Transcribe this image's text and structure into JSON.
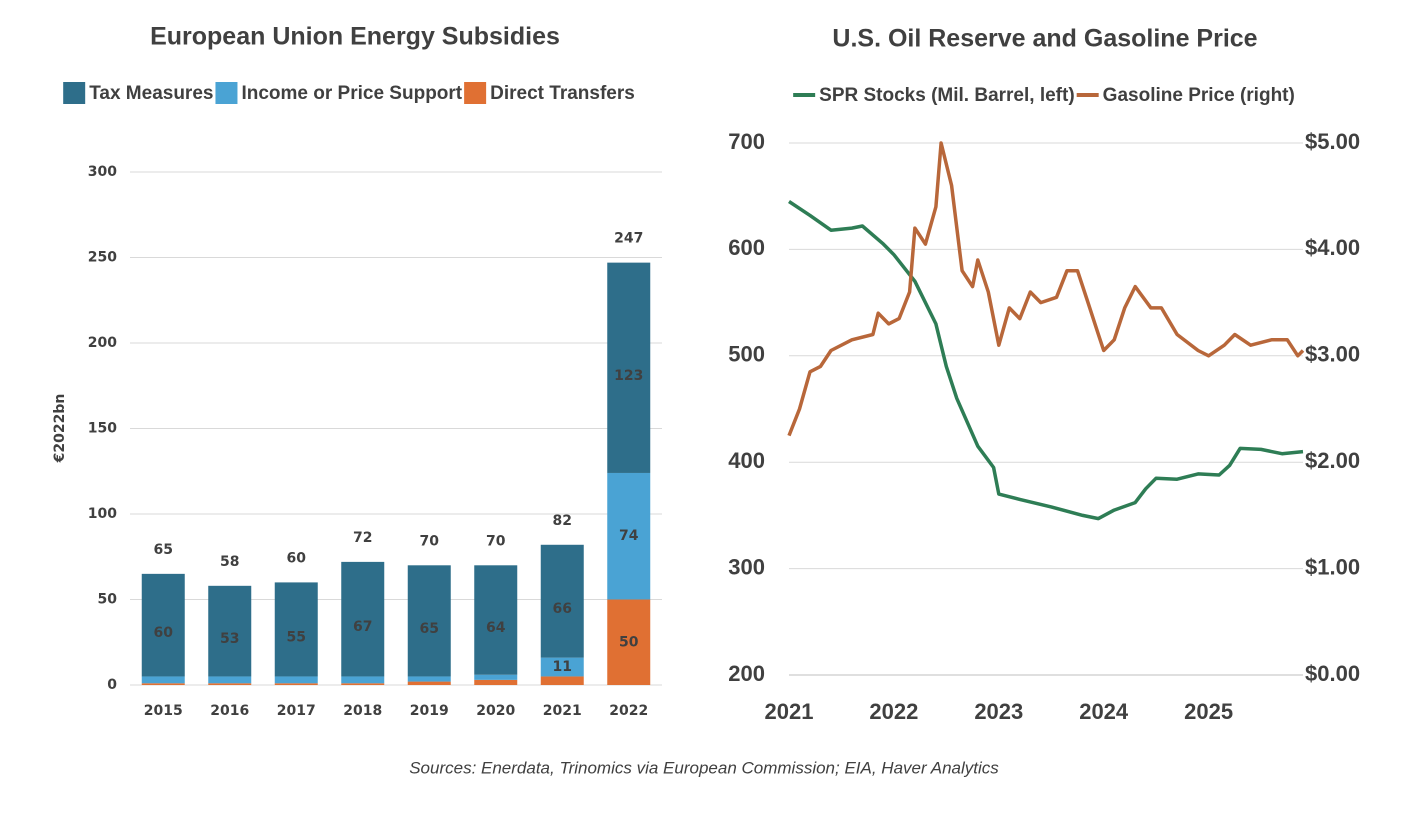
{
  "chart_data": [
    {
      "type": "bar",
      "stacked": true,
      "title": "European Union Energy Subsidies",
      "ylabel": "€2022bn",
      "categories": [
        "2015",
        "2016",
        "2017",
        "2018",
        "2019",
        "2020",
        "2021",
        "2022"
      ],
      "series": [
        {
          "name": "Tax Measures",
          "color": "#2e6e8a",
          "values": [
            60,
            53,
            55,
            67,
            65,
            64,
            66,
            123
          ],
          "value_labels": [
            "60",
            "53",
            "55",
            "67",
            "65",
            "64",
            "66",
            "123"
          ]
        },
        {
          "name": "Income or Price Support",
          "color": "#4aa3d4",
          "values": [
            4,
            4,
            4,
            4,
            3,
            3,
            11,
            74
          ],
          "value_labels": [
            null,
            null,
            null,
            null,
            null,
            null,
            "11",
            "74"
          ]
        },
        {
          "name": "Direct Transfers",
          "color": "#e07033",
          "values": [
            1,
            1,
            1,
            1,
            2,
            3,
            5,
            50
          ],
          "value_labels": [
            null,
            null,
            null,
            null,
            null,
            null,
            null,
            "50"
          ]
        }
      ],
      "totals": [
        65,
        58,
        60,
        72,
        70,
        70,
        82,
        247
      ],
      "ylim": [
        0,
        300
      ],
      "yticks": [
        0,
        50,
        100,
        150,
        200,
        250,
        300
      ],
      "grid": true
    },
    {
      "type": "line",
      "title": "U.S. Oil Reserve and Gasoline Price",
      "series": [
        {
          "name": "SPR Stocks (Mil. Barrel, left)",
          "color": "#2e7d55",
          "x": [
            2021.0,
            2021.2,
            2021.4,
            2021.6,
            2021.7,
            2021.9,
            2022.0,
            2022.2,
            2022.4,
            2022.5,
            2022.6,
            2022.8,
            2022.95,
            2023.0,
            2023.2,
            2023.5,
            2023.8,
            2023.95,
            2024.1,
            2024.3,
            2024.4,
            2024.5,
            2024.7,
            2024.9,
            2025.1,
            2025.2,
            2025.3,
            2025.5,
            2025.7,
            2025.9
          ],
          "values": [
            645,
            632,
            618,
            620,
            622,
            605,
            595,
            570,
            530,
            490,
            460,
            415,
            395,
            370,
            365,
            358,
            350,
            347,
            355,
            362,
            375,
            385,
            384,
            389,
            388,
            397,
            413,
            412,
            408,
            410
          ]
        },
        {
          "name": "Gasoline Price (right)",
          "color": "#b8673a",
          "axis": "y2",
          "x": [
            2021.0,
            2021.1,
            2021.2,
            2021.3,
            2021.4,
            2021.6,
            2021.8,
            2021.85,
            2021.95,
            2022.05,
            2022.15,
            2022.2,
            2022.3,
            2022.4,
            2022.45,
            2022.55,
            2022.65,
            2022.75,
            2022.8,
            2022.9,
            2023.0,
            2023.1,
            2023.2,
            2023.3,
            2023.4,
            2023.55,
            2023.65,
            2023.75,
            2023.85,
            2023.95,
            2024.0,
            2024.1,
            2024.2,
            2024.3,
            2024.45,
            2024.55,
            2024.7,
            2024.9,
            2025.0,
            2025.15,
            2025.25,
            2025.4,
            2025.6,
            2025.75,
            2025.85,
            2025.9
          ],
          "values": [
            2.25,
            2.5,
            2.85,
            2.9,
            3.05,
            3.15,
            3.2,
            3.4,
            3.3,
            3.35,
            3.6,
            4.2,
            4.05,
            4.4,
            5.0,
            4.6,
            3.8,
            3.65,
            3.9,
            3.6,
            3.1,
            3.45,
            3.35,
            3.6,
            3.5,
            3.55,
            3.8,
            3.8,
            3.5,
            3.2,
            3.05,
            3.15,
            3.45,
            3.65,
            3.45,
            3.45,
            3.2,
            3.05,
            3.0,
            3.1,
            3.2,
            3.1,
            3.15,
            3.15,
            3.0,
            3.05
          ]
        }
      ],
      "xlim": [
        2021,
        2025.9
      ],
      "xticks": [
        2021,
        2022,
        2023,
        2024,
        2025
      ],
      "ylim": [
        200,
        700
      ],
      "yticks": [
        200,
        300,
        400,
        500,
        600,
        700
      ],
      "y2lim": [
        0,
        5
      ],
      "y2ticks": [
        {
          "value": 0,
          "label": "$0.00"
        },
        {
          "value": 1,
          "label": "$1.00"
        },
        {
          "value": 2,
          "label": "$2.00"
        },
        {
          "value": 3,
          "label": "$3.00"
        },
        {
          "value": 4,
          "label": "$4.00"
        },
        {
          "value": 5,
          "label": "$5.00"
        }
      ],
      "grid": true
    }
  ],
  "source": "Sources: Enerdata, Trinomics via European Commission; EIA, Haver Analytics"
}
